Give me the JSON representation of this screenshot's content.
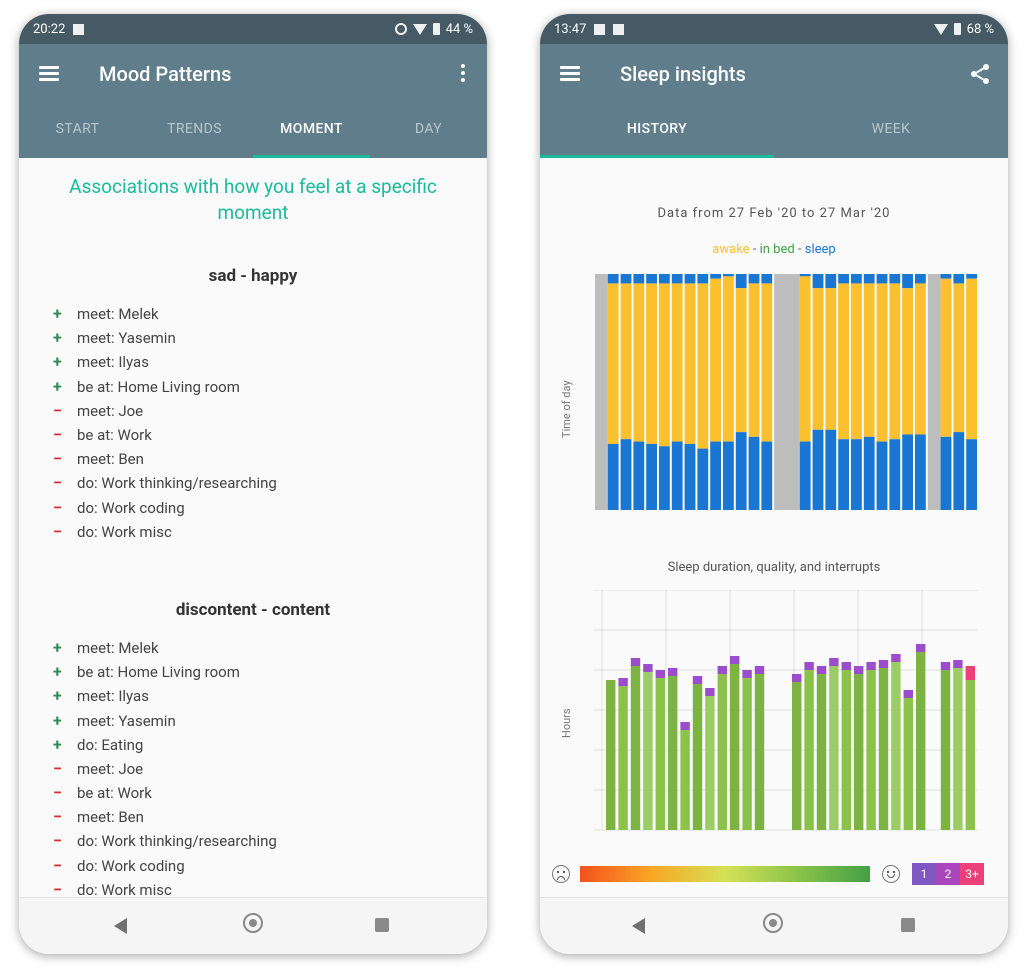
{
  "left": {
    "status": {
      "time": "20:22",
      "battery": "44 %"
    },
    "toolbar": {
      "title": "Mood Patterns"
    },
    "tabs": [
      {
        "label": "START",
        "active": false
      },
      {
        "label": "TRENDS",
        "active": false
      },
      {
        "label": "MOMENT",
        "active": true
      },
      {
        "label": "DAY",
        "active": false
      }
    ],
    "heading": "Associations with how you feel at a specific moment",
    "sections": [
      {
        "title": "sad - happy",
        "items": [
          {
            "sign": "+",
            "text": "meet: Melek"
          },
          {
            "sign": "+",
            "text": "meet: Yasemin"
          },
          {
            "sign": "+",
            "text": "meet: Ilyas"
          },
          {
            "sign": "+",
            "text": "be at: Home Living room"
          },
          {
            "sign": "−",
            "text": "meet: Joe"
          },
          {
            "sign": "−",
            "text": "be at: Work"
          },
          {
            "sign": "−",
            "text": "meet: Ben"
          },
          {
            "sign": "−",
            "text": "do: Work thinking/researching"
          },
          {
            "sign": "−",
            "text": "do: Work coding"
          },
          {
            "sign": "−",
            "text": "do: Work misc"
          }
        ]
      },
      {
        "title": "discontent - content",
        "items": [
          {
            "sign": "+",
            "text": "meet: Melek"
          },
          {
            "sign": "+",
            "text": "be at: Home Living room"
          },
          {
            "sign": "+",
            "text": "meet: Ilyas"
          },
          {
            "sign": "+",
            "text": "meet: Yasemin"
          },
          {
            "sign": "+",
            "text": "do: Eating"
          },
          {
            "sign": "−",
            "text": "meet: Joe"
          },
          {
            "sign": "−",
            "text": "be at: Work"
          },
          {
            "sign": "−",
            "text": "meet: Ben"
          },
          {
            "sign": "−",
            "text": "do: Work thinking/researching"
          },
          {
            "sign": "−",
            "text": "do: Work coding"
          },
          {
            "sign": "−",
            "text": "do: Work misc"
          }
        ]
      }
    ]
  },
  "right": {
    "status": {
      "time": "13:47",
      "battery": "68 %"
    },
    "toolbar": {
      "title": "Sleep insights"
    },
    "tabs": [
      {
        "label": "HISTORY",
        "active": true
      },
      {
        "label": "WEEK",
        "active": false
      }
    ],
    "date_range": "Data from 27 Feb '20 to 27 Mar '20",
    "legend": {
      "awake": "awake",
      "sep": " - ",
      "inbed": "in bed",
      "sleep": "sleep"
    },
    "chart2_title": "Sleep duration, quality, and interrupts",
    "interrupt_labels": [
      "1",
      "2",
      "3+"
    ]
  },
  "colors": {
    "toolbar": "#607d8b",
    "statusbar": "#455a64",
    "accent": "#1abc9c",
    "awake": "#fbc02d",
    "sleep": "#1976d2",
    "missing": "#bdbdbd",
    "interrupt1": "#9c4dcc",
    "interrupt2": "#ab47bc",
    "interrupt3": "#ec407a"
  },
  "chart_data": [
    {
      "type": "bar",
      "stacked": true,
      "ylabel": "Time of day",
      "series_names": [
        "awake",
        "in bed",
        "sleep"
      ],
      "days": [
        {
          "missing": true
        },
        {
          "top": 0.04,
          "awake": 0.68,
          "sleep": 0.28
        },
        {
          "top": 0.04,
          "awake": 0.66,
          "sleep": 0.3
        },
        {
          "top": 0.04,
          "awake": 0.67,
          "sleep": 0.29
        },
        {
          "top": 0.04,
          "awake": 0.68,
          "sleep": 0.28
        },
        {
          "top": 0.04,
          "awake": 0.69,
          "sleep": 0.27
        },
        {
          "top": 0.04,
          "awake": 0.67,
          "sleep": 0.29
        },
        {
          "top": 0.04,
          "awake": 0.68,
          "sleep": 0.28
        },
        {
          "top": 0.04,
          "awake": 0.7,
          "sleep": 0.26
        },
        {
          "top": 0.02,
          "awake": 0.69,
          "sleep": 0.29
        },
        {
          "top": 0.01,
          "awake": 0.7,
          "sleep": 0.29
        },
        {
          "top": 0.06,
          "awake": 0.61,
          "sleep": 0.33
        },
        {
          "top": 0.04,
          "awake": 0.65,
          "sleep": 0.31
        },
        {
          "top": 0.04,
          "awake": 0.67,
          "sleep": 0.29
        },
        {
          "missing": true
        },
        {
          "missing": true
        },
        {
          "top": 0.01,
          "awake": 0.7,
          "sleep": 0.29
        },
        {
          "top": 0.06,
          "awake": 0.6,
          "sleep": 0.34
        },
        {
          "top": 0.06,
          "awake": 0.6,
          "sleep": 0.34
        },
        {
          "top": 0.04,
          "awake": 0.66,
          "sleep": 0.3
        },
        {
          "top": 0.04,
          "awake": 0.66,
          "sleep": 0.3
        },
        {
          "top": 0.04,
          "awake": 0.65,
          "sleep": 0.31
        },
        {
          "top": 0.04,
          "awake": 0.67,
          "sleep": 0.29
        },
        {
          "top": 0.04,
          "awake": 0.66,
          "sleep": 0.3
        },
        {
          "top": 0.06,
          "awake": 0.62,
          "sleep": 0.32
        },
        {
          "top": 0.04,
          "awake": 0.64,
          "sleep": 0.32
        },
        {
          "missing": true
        },
        {
          "top": 0.02,
          "awake": 0.67,
          "sleep": 0.31
        },
        {
          "top": 0.04,
          "awake": 0.63,
          "sleep": 0.33
        },
        {
          "top": 0.02,
          "awake": 0.68,
          "sleep": 0.3
        }
      ]
    },
    {
      "type": "bar",
      "stacked": true,
      "title": "Sleep duration, quality, and interrupts",
      "ylabel": "Hours",
      "values": [
        7.5,
        7.2,
        8.2,
        7.9,
        7.6,
        7.7,
        5.0,
        7.3,
        6.7,
        7.8,
        8.3,
        7.6,
        7.8,
        null,
        null,
        7.4,
        8.0,
        7.8,
        8.2,
        8.0,
        7.8,
        8.0,
        8.1,
        8.4,
        6.6,
        8.9,
        null,
        8.0,
        8.1,
        7.5
      ],
      "interrupts": [
        0,
        1,
        1,
        1,
        1,
        1,
        1,
        1,
        1,
        1,
        1,
        1,
        1,
        0,
        0,
        1,
        1,
        1,
        1,
        1,
        1,
        1,
        1,
        1,
        1,
        1,
        0,
        1,
        1,
        3
      ]
    }
  ]
}
